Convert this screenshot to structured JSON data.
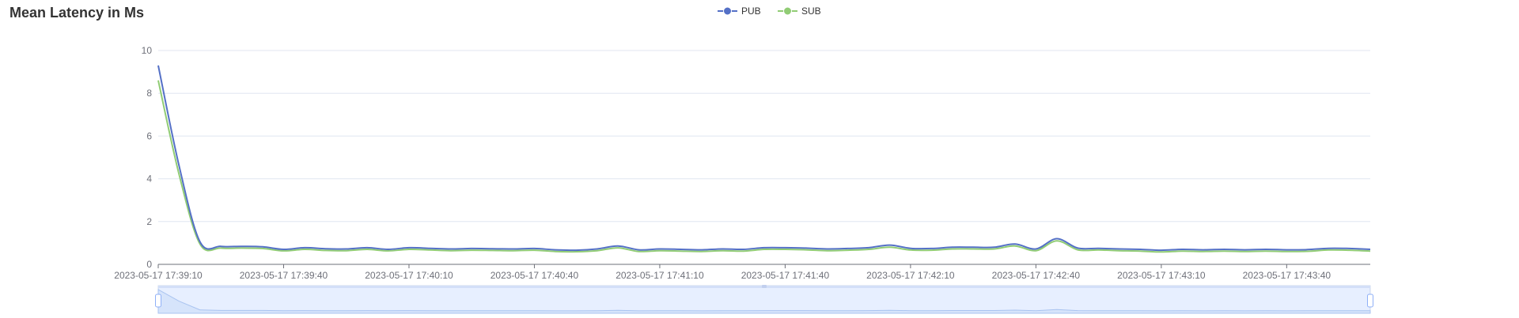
{
  "chart_data": {
    "type": "line",
    "title": "Mean Latency in Ms",
    "xlabel": "",
    "ylabel": "",
    "ylim": [
      0,
      10
    ],
    "yticks": [
      0,
      2,
      4,
      6,
      8,
      10
    ],
    "x_tick_labels": [
      "2023-05-17 17:39:10",
      "2023-05-17 17:39:40",
      "2023-05-17 17:40:10",
      "2023-05-17 17:40:40",
      "2023-05-17 17:41:10",
      "2023-05-17 17:41:40",
      "2023-05-17 17:42:10",
      "2023-05-17 17:42:40",
      "2023-05-17 17:43:10",
      "2023-05-17 17:43:40"
    ],
    "x_range": [
      "2023-05-17 17:39:10",
      "2023-05-17 17:44:00"
    ],
    "x": [
      "2023-05-17 17:39:10",
      "2023-05-17 17:39:15",
      "2023-05-17 17:39:20",
      "2023-05-17 17:39:25",
      "2023-05-17 17:39:30",
      "2023-05-17 17:39:35",
      "2023-05-17 17:39:40",
      "2023-05-17 17:39:45",
      "2023-05-17 17:39:50",
      "2023-05-17 17:39:55",
      "2023-05-17 17:40:00",
      "2023-05-17 17:40:05",
      "2023-05-17 17:40:10",
      "2023-05-17 17:40:15",
      "2023-05-17 17:40:20",
      "2023-05-17 17:40:25",
      "2023-05-17 17:40:30",
      "2023-05-17 17:40:35",
      "2023-05-17 17:40:40",
      "2023-05-17 17:40:45",
      "2023-05-17 17:40:50",
      "2023-05-17 17:40:55",
      "2023-05-17 17:41:00",
      "2023-05-17 17:41:05",
      "2023-05-17 17:41:10",
      "2023-05-17 17:41:15",
      "2023-05-17 17:41:20",
      "2023-05-17 17:41:25",
      "2023-05-17 17:41:30",
      "2023-05-17 17:41:35",
      "2023-05-17 17:41:40",
      "2023-05-17 17:41:45",
      "2023-05-17 17:41:50",
      "2023-05-17 17:41:55",
      "2023-05-17 17:42:00",
      "2023-05-17 17:42:05",
      "2023-05-17 17:42:10",
      "2023-05-17 17:42:15",
      "2023-05-17 17:42:20",
      "2023-05-17 17:42:25",
      "2023-05-17 17:42:30",
      "2023-05-17 17:42:35",
      "2023-05-17 17:42:40",
      "2023-05-17 17:42:45",
      "2023-05-17 17:42:50",
      "2023-05-17 17:42:55",
      "2023-05-17 17:43:00",
      "2023-05-17 17:43:05",
      "2023-05-17 17:43:10",
      "2023-05-17 17:43:15",
      "2023-05-17 17:43:20",
      "2023-05-17 17:43:25",
      "2023-05-17 17:43:30",
      "2023-05-17 17:43:35",
      "2023-05-17 17:43:40",
      "2023-05-17 17:43:45",
      "2023-05-17 17:43:50",
      "2023-05-17 17:43:55",
      "2023-05-17 17:44:00"
    ],
    "series": [
      {
        "name": "PUB",
        "color": "#5470c6",
        "values": [
          9.3,
          4.6,
          1.05,
          0.84,
          0.84,
          0.82,
          0.7,
          0.78,
          0.73,
          0.72,
          0.78,
          0.7,
          0.78,
          0.75,
          0.72,
          0.74,
          0.73,
          0.72,
          0.74,
          0.68,
          0.66,
          0.72,
          0.86,
          0.68,
          0.72,
          0.7,
          0.68,
          0.72,
          0.7,
          0.78,
          0.78,
          0.76,
          0.72,
          0.74,
          0.78,
          0.9,
          0.75,
          0.74,
          0.8,
          0.8,
          0.8,
          0.95,
          0.72,
          1.2,
          0.76,
          0.75,
          0.72,
          0.7,
          0.66,
          0.7,
          0.68,
          0.7,
          0.68,
          0.7,
          0.68,
          0.69,
          0.75,
          0.74,
          0.7
        ]
      },
      {
        "name": "SUB",
        "color": "#91cc75",
        "values": [
          8.6,
          4.2,
          0.95,
          0.76,
          0.76,
          0.74,
          0.63,
          0.7,
          0.65,
          0.64,
          0.7,
          0.63,
          0.7,
          0.67,
          0.64,
          0.66,
          0.65,
          0.64,
          0.66,
          0.6,
          0.59,
          0.64,
          0.77,
          0.6,
          0.64,
          0.62,
          0.6,
          0.64,
          0.62,
          0.7,
          0.7,
          0.68,
          0.64,
          0.66,
          0.7,
          0.8,
          0.67,
          0.66,
          0.72,
          0.72,
          0.72,
          0.86,
          0.64,
          1.1,
          0.68,
          0.67,
          0.64,
          0.62,
          0.58,
          0.62,
          0.6,
          0.62,
          0.6,
          0.62,
          0.6,
          0.61,
          0.67,
          0.66,
          0.62
        ]
      }
    ],
    "grid": true,
    "legend_position": "top-center",
    "data_zoom": {
      "start_percent": 0,
      "end_percent": 100
    }
  }
}
